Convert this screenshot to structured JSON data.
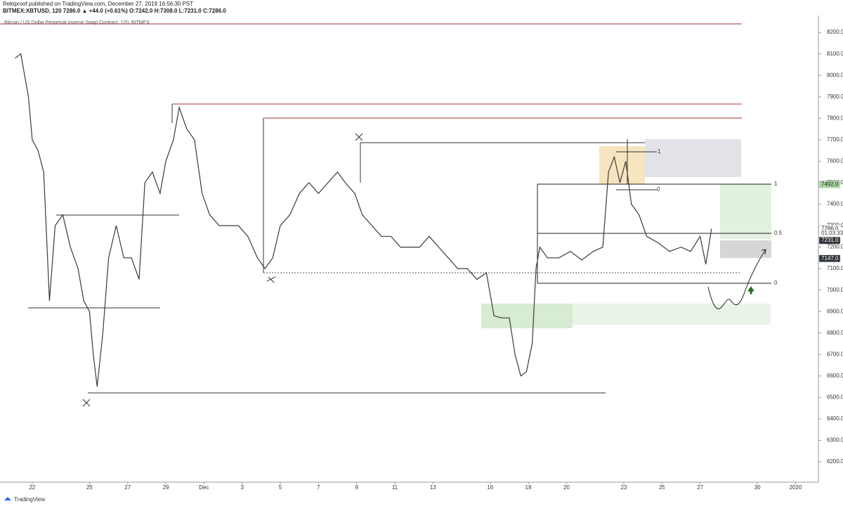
{
  "header": {
    "publisher": "Rektproof published on TradingView.com, December 27, 2019 16:56:30 PST",
    "symbol": "BITMEX:XBTUSD, 120  7286.0 ▲ +44.0 (+0.61%) O:7242.0 H:7308.0 L:7231.0 C:7286.0"
  },
  "chart_data": {
    "type": "line",
    "title": "Bitcoin / US Dollar Perpetual Inverse Swap Contract, 120, BITMEX",
    "x": [
      0.1,
      0.4,
      0.8,
      1.0,
      1.3,
      1.6,
      1.9,
      2.2,
      2.6,
      3.0,
      3.4,
      3.7,
      4.0,
      4.2,
      4.4,
      4.7,
      5.0,
      5.4,
      5.8,
      6.2,
      6.6,
      6.9,
      7.3,
      7.7,
      8.0,
      8.4,
      8.7,
      9.1,
      9.5,
      9.9,
      10.3,
      10.8,
      11.3,
      11.8,
      12.3,
      12.8,
      13.2,
      13.6,
      14.0,
      14.5,
      15.0,
      15.5,
      16.0,
      16.5,
      17.0,
      17.4,
      17.9,
      18.3,
      18.8,
      19.3,
      19.8,
      20.3,
      20.8,
      21.3,
      21.8,
      22.3,
      22.8,
      23.3,
      23.8,
      24.3,
      24.8,
      25.2,
      25.6,
      26.0,
      26.3,
      26.6,
      26.9,
      27.2,
      27.4,
      27.6,
      28.0,
      28.6,
      29.2,
      29.8,
      30.4,
      30.9,
      31.2,
      31.5,
      31.8,
      32.1,
      32.4,
      32.8,
      33.2,
      33.8,
      34.4,
      35.0,
      35.5,
      36.0,
      36.3,
      36.6
    ],
    "values": [
      8080,
      8100,
      7900,
      7700,
      7650,
      7550,
      6950,
      7300,
      7350,
      7200,
      7100,
      6950,
      6900,
      6700,
      6550,
      6800,
      7150,
      7300,
      7150,
      7150,
      7050,
      7500,
      7550,
      7450,
      7600,
      7700,
      7850,
      7750,
      7700,
      7450,
      7350,
      7300,
      7300,
      7300,
      7250,
      7150,
      7100,
      7150,
      7300,
      7350,
      7450,
      7500,
      7450,
      7500,
      7550,
      7500,
      7450,
      7350,
      7300,
      7250,
      7250,
      7200,
      7200,
      7200,
      7250,
      7200,
      7150,
      7100,
      7100,
      7050,
      7080,
      6880,
      6870,
      6870,
      6700,
      6600,
      6620,
      6750,
      7100,
      7200,
      7150,
      7150,
      7180,
      7140,
      7180,
      7200,
      7550,
      7620,
      7500,
      7600,
      7400,
      7350,
      7250,
      7220,
      7180,
      7200,
      7180,
      7250,
      7120,
      7286
    ],
    "color": "#3a3a3a",
    "xlim": [
      -0.69,
      42.2
    ],
    "xticks": [
      {
        "value": 1,
        "label": "22"
      },
      {
        "value": 4,
        "label": "25"
      },
      {
        "value": 6,
        "label": "27"
      },
      {
        "value": 8,
        "label": "29"
      },
      {
        "value": 10,
        "label": "Dec"
      },
      {
        "value": 12,
        "label": "3"
      },
      {
        "value": 14,
        "label": "5"
      },
      {
        "value": 16,
        "label": "7"
      },
      {
        "value": 18,
        "label": "9"
      },
      {
        "value": 20,
        "label": "11"
      },
      {
        "value": 22,
        "label": "13"
      },
      {
        "value": 25,
        "label": "16"
      },
      {
        "value": 27,
        "label": "18"
      },
      {
        "value": 29,
        "label": "20"
      },
      {
        "value": 32,
        "label": "23"
      },
      {
        "value": 34,
        "label": "25"
      },
      {
        "value": 36,
        "label": "27"
      },
      {
        "value": 39,
        "label": "30"
      },
      {
        "value": 41,
        "label": "2020"
      }
    ],
    "ylim": [
      6105,
      8279
    ],
    "yticks": [
      {
        "value": 6200,
        "label": "6200.0"
      },
      {
        "value": 6300,
        "label": "6300.0"
      },
      {
        "value": 6400,
        "label": "6400.0"
      },
      {
        "value": 6500,
        "label": "6500.0"
      },
      {
        "value": 6600,
        "label": "6600.0"
      },
      {
        "value": 6700,
        "label": "6700.0"
      },
      {
        "value": 6800,
        "label": "6800.0"
      },
      {
        "value": 6900,
        "label": "6900.0"
      },
      {
        "value": 7000,
        "label": "7000.0"
      },
      {
        "value": 7100,
        "label": "7100.0"
      },
      {
        "value": 7200,
        "label": "7200.0"
      },
      {
        "value": 7300,
        "label": "7300.0"
      },
      {
        "value": 7400,
        "label": "7400.0"
      },
      {
        "value": 7500,
        "label": "7500.0"
      },
      {
        "value": 7600,
        "label": "7600.0"
      },
      {
        "value": 7700,
        "label": "7700.0"
      },
      {
        "value": 7800,
        "label": "7800.0"
      },
      {
        "value": 7900,
        "label": "7900.0"
      },
      {
        "value": 8000,
        "label": "8000.0"
      },
      {
        "value": 8100,
        "label": "8100.0"
      },
      {
        "value": 8200,
        "label": "8200.0"
      }
    ],
    "price_labels": [
      {
        "value": 7492,
        "label": "7492.0"
      },
      {
        "value": 7286,
        "label": "7286.0"
      },
      {
        "value": 7231,
        "label": "7231.0"
      },
      {
        "value": 7147,
        "label": "7147.0"
      }
    ],
    "countdown": "01:03:33",
    "annotations": [
      "1",
      "0.5",
      "0",
      "1",
      "0"
    ]
  },
  "footer": {
    "brand": "TradingView"
  }
}
